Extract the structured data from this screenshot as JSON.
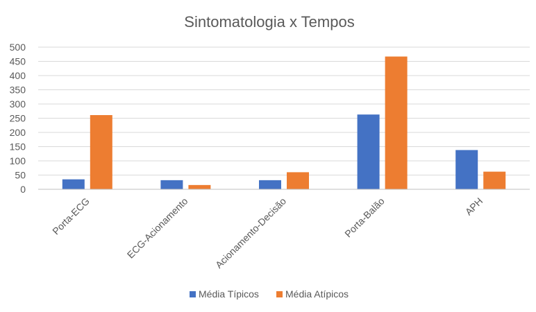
{
  "chart_data": {
    "type": "bar",
    "title": "Sintomatologia x Tempos",
    "xlabel": "",
    "ylabel": "",
    "categories": [
      "Porta-ECG",
      "ECG-Acionamento",
      "Acionamento-Decisão",
      "Porta-Balão",
      "APH"
    ],
    "series": [
      {
        "name": "Média Típicos",
        "color": "#4472C4",
        "values": [
          35,
          32,
          32,
          263,
          138
        ]
      },
      {
        "name": "Média Atípicos",
        "color": "#ED7D31",
        "values": [
          261,
          15,
          60,
          467,
          62
        ]
      }
    ],
    "ylim": [
      0,
      500
    ],
    "yticks": [
      0,
      50,
      100,
      150,
      200,
      250,
      300,
      350,
      400,
      450,
      500
    ],
    "grid": true,
    "legend_position": "bottom"
  }
}
